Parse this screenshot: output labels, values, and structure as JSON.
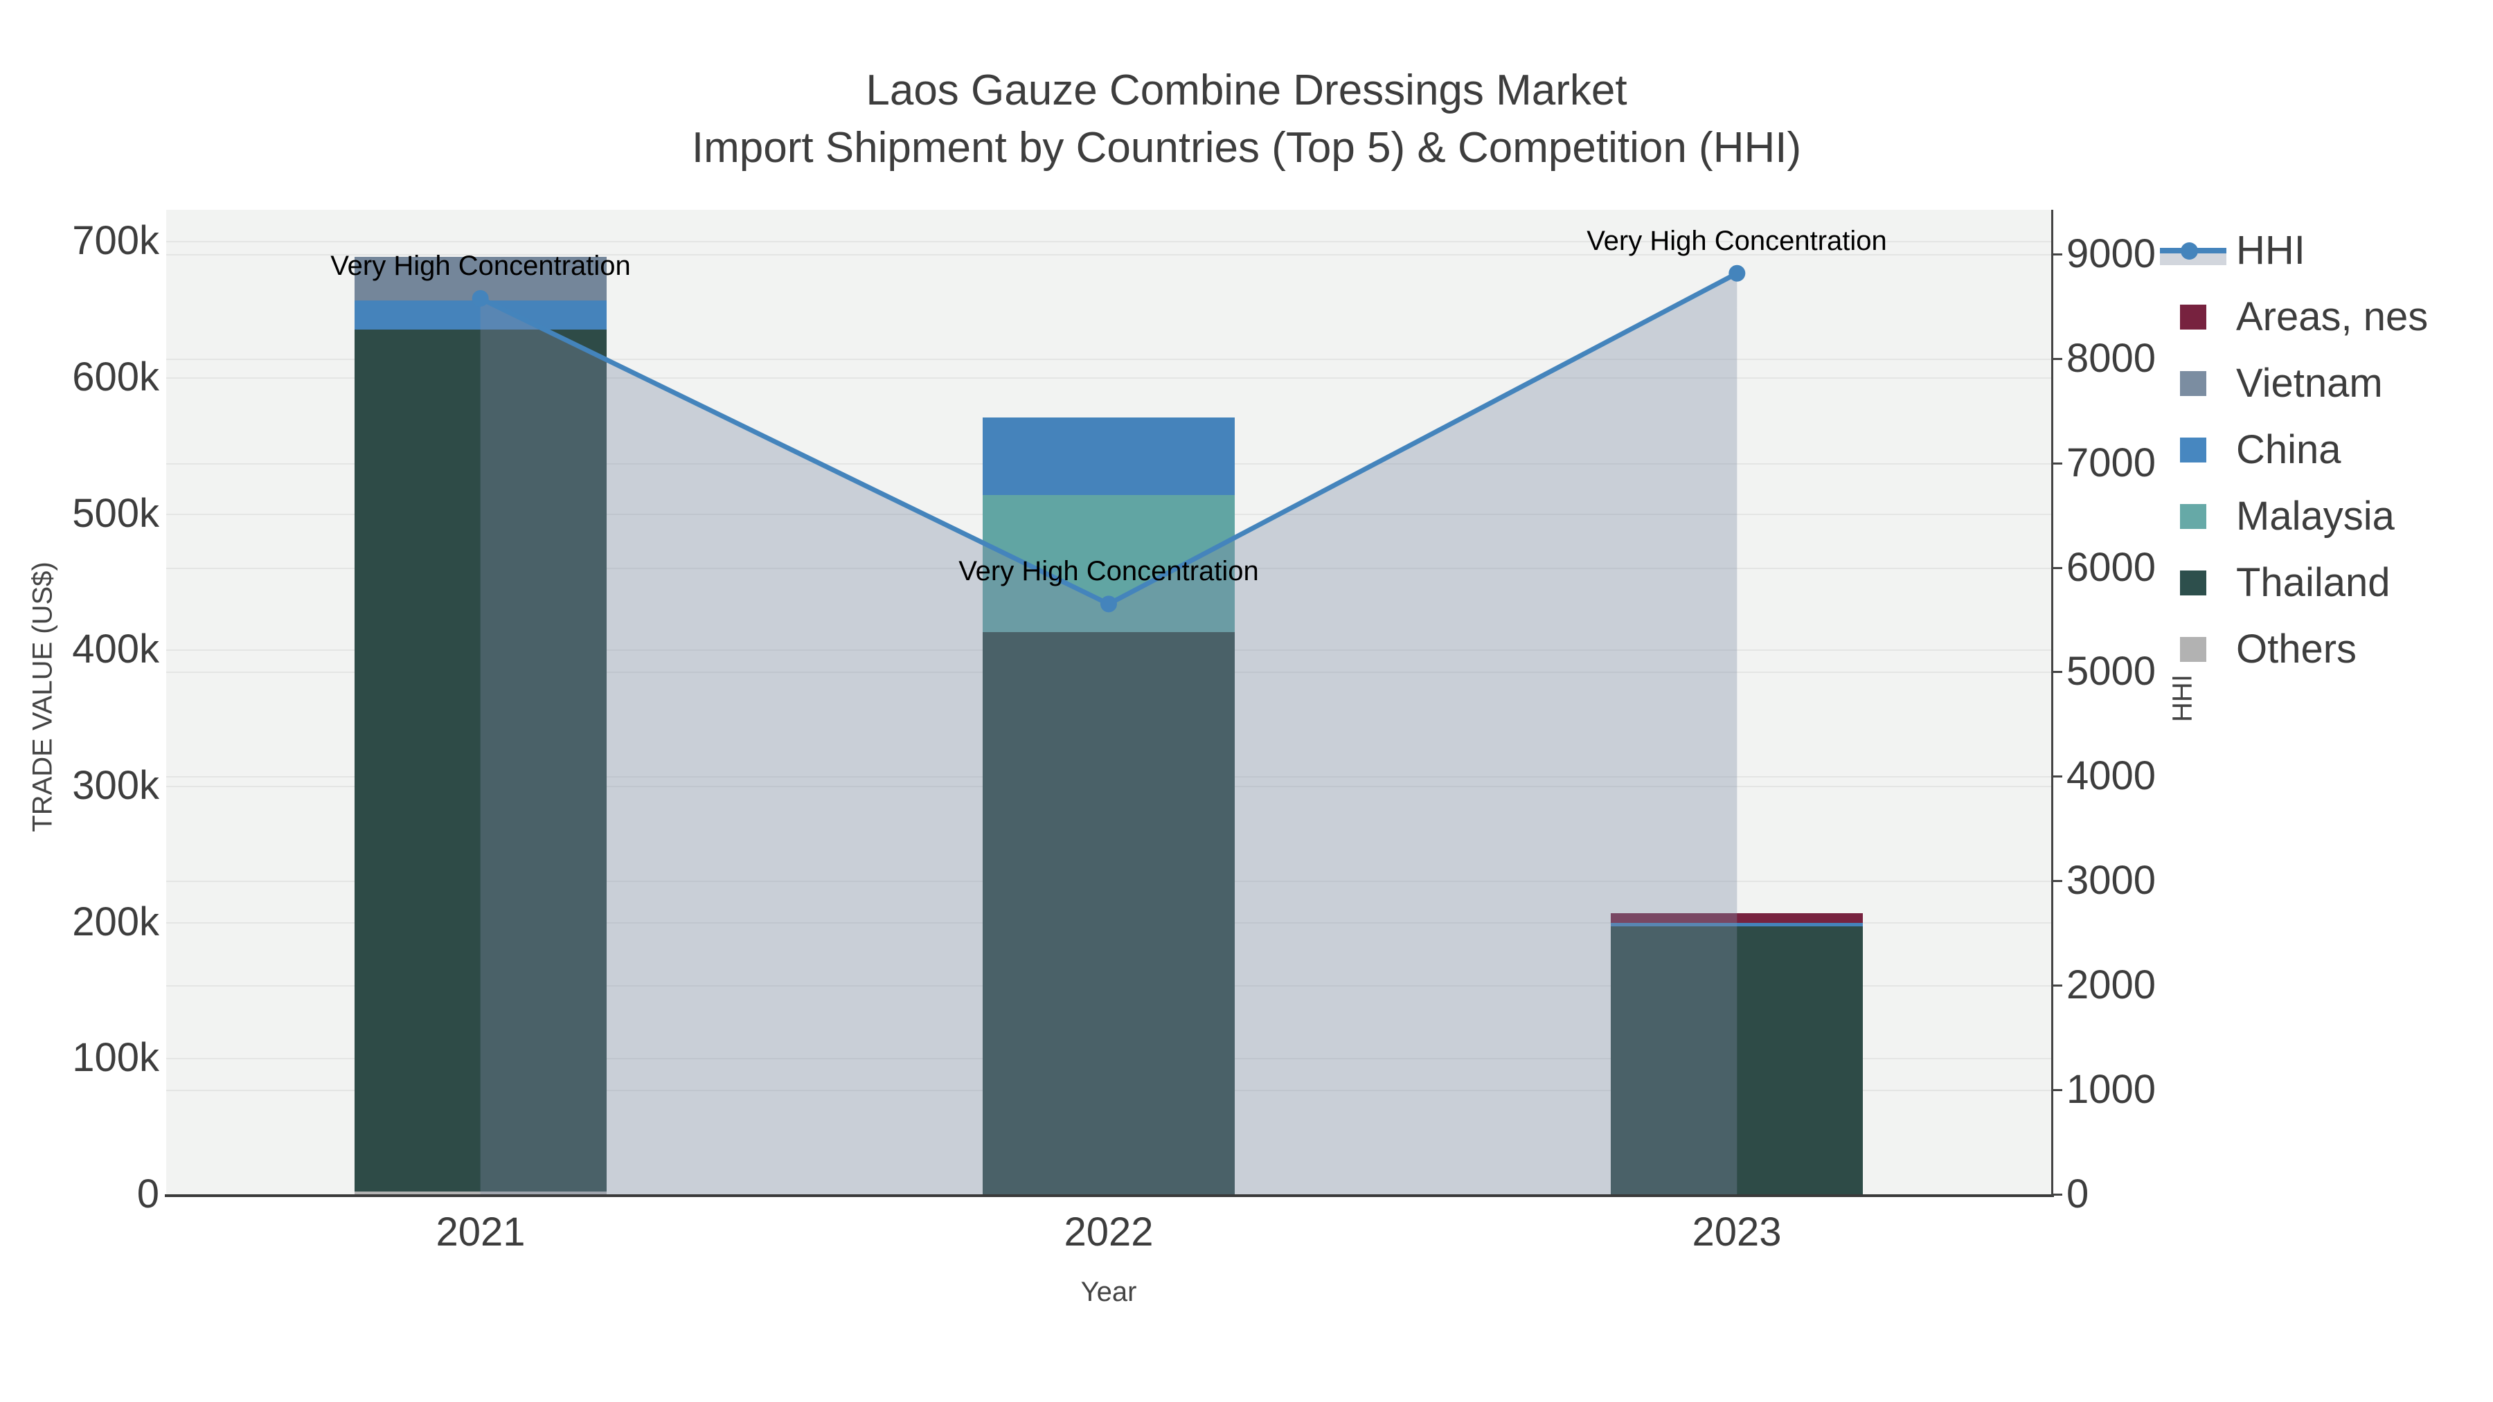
{
  "title": {
    "line1": "Laos Gauze Combine Dressings Market",
    "line2": "Import Shipment by Countries (Top 5) & Competition (HHI)"
  },
  "axes": {
    "x": {
      "title": "Year",
      "categories": [
        "2021",
        "2022",
        "2023"
      ]
    },
    "y_left": {
      "title": "TRADE VALUE (US$)",
      "tick_labels": [
        "0",
        "100k",
        "200k",
        "300k",
        "400k",
        "500k",
        "600k",
        "700k"
      ],
      "tick_values": [
        0,
        100000,
        200000,
        300000,
        400000,
        500000,
        600000,
        700000
      ],
      "range": [
        0,
        723000
      ]
    },
    "y_right": {
      "title": "HHI",
      "tick_labels": [
        "0",
        "1000",
        "2000",
        "3000",
        "4000",
        "5000",
        "6000",
        "7000",
        "8000",
        "9000"
      ],
      "tick_values": [
        0,
        1000,
        2000,
        3000,
        4000,
        5000,
        6000,
        7000,
        8000,
        9000
      ],
      "range": [
        0,
        9423
      ]
    }
  },
  "chart_data": {
    "type": "bar",
    "subtype": "stacked-bars-with-line",
    "title": "Laos Gauze Combine Dressings Market — Import Shipment by Countries (Top 5) & Competition (HHI)",
    "xlabel": "Year",
    "ylabel": "TRADE VALUE (US$)",
    "ylabel_right": "HHI",
    "categories": [
      "2021",
      "2022",
      "2023"
    ],
    "bar_series_bottom_to_top": [
      {
        "name": "Others",
        "color": "#b3b3b3",
        "values": [
          2000,
          0,
          0
        ]
      },
      {
        "name": "Thailand",
        "color": "#2e4b47",
        "values": [
          633000,
          413000,
          197000
        ]
      },
      {
        "name": "Malaysia",
        "color": "#61a5a3",
        "values": [
          0,
          100500,
          0
        ]
      },
      {
        "name": "China",
        "color": "#4583bb",
        "values": [
          21500,
          57000,
          2500
        ]
      },
      {
        "name": "Vietnam",
        "color": "#74869a",
        "values": [
          32000,
          0,
          0
        ]
      },
      {
        "name": "Areas, nes",
        "color": "#77223f",
        "values": [
          0,
          0,
          7000
        ]
      }
    ],
    "line_series": {
      "name": "HHI",
      "axis": "y_right",
      "color": "#4484bc",
      "fill_color": "rgba(125,139,165,0.35)",
      "values": [
        8575,
        5650,
        8815
      ]
    },
    "annotations": [
      {
        "x": "2021",
        "text": "Very High Concentration"
      },
      {
        "x": "2022",
        "text": "Very High Concentration"
      },
      {
        "x": "2023",
        "text": "Very High Concentration"
      }
    ],
    "grid": true,
    "legend_position": "right-top"
  },
  "legend": {
    "entries": [
      {
        "label": "HHI",
        "type": "line",
        "color": "#4484bc"
      },
      {
        "label": "Areas, nes",
        "type": "swatch",
        "color": "#77223f"
      },
      {
        "label": "Vietnam",
        "type": "swatch",
        "color": "#7b8da1"
      },
      {
        "label": "China",
        "type": "swatch",
        "color": "#4787c0"
      },
      {
        "label": "Malaysia",
        "type": "swatch",
        "color": "#66a9a7"
      },
      {
        "label": "Thailand",
        "type": "swatch",
        "color": "#2d4f4c"
      },
      {
        "label": "Others",
        "type": "swatch",
        "color": "#b2b2b2"
      }
    ]
  },
  "colors": {
    "plot_background": "#f2f3f2",
    "gridline": "#e4e5e4",
    "axis_line": "#3a3a3a",
    "title_text": "#3d3d3d",
    "tick_text": "#3d3d3d",
    "annotation_text": "#000000"
  }
}
